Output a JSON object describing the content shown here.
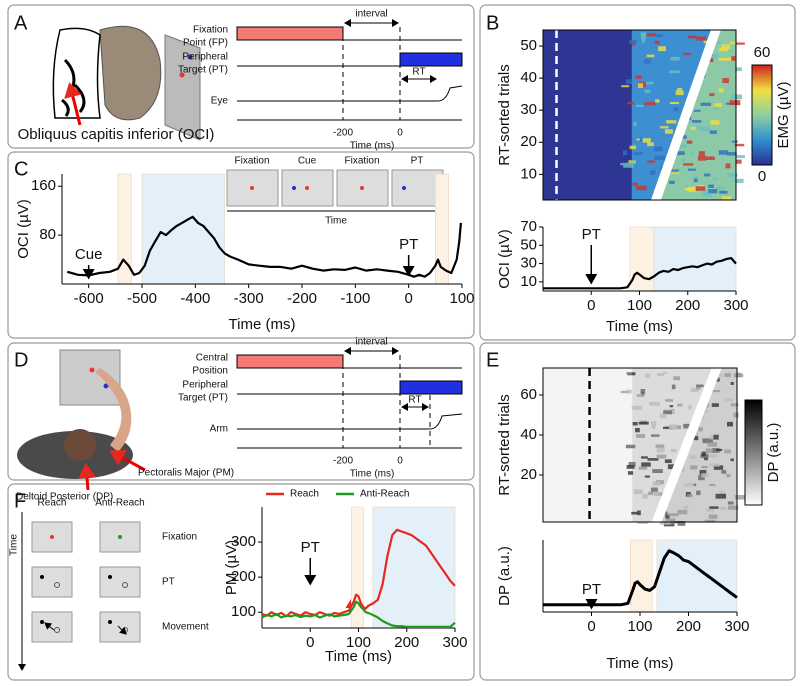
{
  "panel_labels": [
    "A",
    "B",
    "C",
    "D",
    "E",
    "F"
  ],
  "panel_a": {
    "muscle_label": "Obliquus capitis inferior (OCI)",
    "timing": {
      "rows": [
        [
          "Fixation",
          "Point (FP)"
        ],
        [
          "Peripheral",
          "Target (PT)"
        ],
        [
          "Eye"
        ]
      ],
      "interval_label": "interval",
      "rt_label": "RT",
      "xticks": [
        -200,
        0
      ],
      "xlabel": "Time (ms)"
    }
  },
  "panel_c_inset": {
    "frames": [
      "Fixation",
      "Cue",
      "Fixation",
      "PT"
    ],
    "arrow_label": "Time"
  },
  "panel_d": {
    "muscle_labels": [
      "Pectoralis Major (PM)",
      "Deltoid Posterior (DP)"
    ],
    "timing": {
      "rows": [
        [
          "Central",
          "Position"
        ],
        [
          "Peripheral",
          "Target (PT)"
        ],
        [
          "Arm"
        ]
      ],
      "interval_label": "interval",
      "rt_label": "RT",
      "xticks": [
        -200,
        0
      ],
      "xlabel": "Time (ms)"
    }
  },
  "panel_f_schematic": {
    "columns": [
      "Reach",
      "Anti-Reach"
    ],
    "rows": [
      "Fixation",
      "PT",
      "Movement"
    ],
    "axis_label": "Time"
  },
  "chart_data": [
    {
      "type": "line",
      "xlabel": "Time (ms)",
      "ylabel": "OCI (µV)",
      "xlim": [
        -650,
        100
      ],
      "ylim": [
        0,
        180
      ],
      "xticks": [
        -600,
        -500,
        -400,
        -300,
        -200,
        -100,
        0,
        100
      ],
      "yticks": [
        80,
        160
      ],
      "x": [
        -640,
        -620,
        -600,
        -580,
        -560,
        -545,
        -535,
        -525,
        -515,
        -505,
        -495,
        -485,
        -475,
        -465,
        -455,
        -445,
        -435,
        -425,
        -415,
        -405,
        -395,
        -385,
        -375,
        -365,
        -355,
        -345,
        -335,
        -320,
        -300,
        -280,
        -260,
        -240,
        -220,
        -200,
        -180,
        -160,
        -140,
        -120,
        -100,
        -80,
        -60,
        -40,
        -20,
        0,
        10,
        20,
        30,
        40,
        50,
        55,
        60,
        70,
        80,
        90,
        95,
        98
      ],
      "series": [
        {
          "color": "#000000",
          "values": [
            20,
            15,
            14,
            18,
            20,
            25,
            40,
            30,
            15,
            18,
            30,
            55,
            70,
            85,
            80,
            88,
            95,
            100,
            105,
            110,
            100,
            95,
            85,
            75,
            60,
            50,
            45,
            40,
            32,
            30,
            28,
            28,
            25,
            30,
            25,
            22,
            24,
            23,
            27,
            22,
            24,
            22,
            20,
            15,
            12,
            15,
            12,
            18,
            30,
            40,
            28,
            22,
            18,
            40,
            70,
            100
          ]
        }
      ],
      "highlights": [
        {
          "x": [
            -545,
            -520
          ],
          "color": "#fdf1e4"
        },
        {
          "x": [
            -500,
            -345
          ],
          "color": "#e3eff9"
        },
        {
          "x": [
            50,
            75
          ],
          "color": "#fdf1e4"
        }
      ],
      "annotations": [
        {
          "text": "Cue",
          "x": -600
        },
        {
          "text": "PT",
          "x": 0
        }
      ]
    },
    {
      "type": "heatmap",
      "ylabel": "RT-sorted trials",
      "ylim": [
        2,
        55
      ],
      "yticks": [
        10,
        20,
        30,
        40,
        50
      ],
      "colorbar": {
        "label": "EMG (µV)",
        "clim": [
          0,
          60
        ],
        "ticks": [
          0,
          60
        ],
        "colors": [
          "#2b2f8f",
          "#2f8fd0",
          "#8fd0a0",
          "#f0e040",
          "#d02020"
        ]
      }
    },
    {
      "type": "line",
      "xlabel": "Time (ms)",
      "ylabel": "OCI (µV)",
      "xlim": [
        -100,
        300
      ],
      "ylim": [
        0,
        70
      ],
      "xticks": [
        0,
        100,
        200,
        300
      ],
      "yticks": [
        10,
        30,
        50,
        70
      ],
      "x": [
        -100,
        -80,
        -60,
        -40,
        -20,
        0,
        20,
        40,
        60,
        75,
        85,
        90,
        95,
        100,
        110,
        120,
        130,
        140,
        150,
        160,
        170,
        180,
        190,
        200,
        210,
        220,
        230,
        240,
        250,
        260,
        270,
        280,
        290,
        300
      ],
      "series": [
        {
          "color": "#000000",
          "values": [
            3,
            3,
            3,
            3,
            3,
            3,
            3,
            3,
            3,
            4,
            12,
            18,
            20,
            18,
            14,
            13,
            16,
            20,
            22,
            21,
            24,
            23,
            25,
            26,
            27,
            26,
            28,
            30,
            29,
            32,
            33,
            35,
            36,
            30
          ]
        }
      ],
      "highlights": [
        {
          "x": [
            80,
            130
          ],
          "color": "#fdf1e4"
        },
        {
          "x": [
            130,
            300
          ],
          "color": "#e3eff9"
        }
      ],
      "annotations": [
        {
          "text": "PT",
          "x": 0
        }
      ]
    },
    {
      "type": "heatmap",
      "ylabel": "RT-sorted trials",
      "ylim": [
        -3.5,
        73.5
      ],
      "yticks": [
        20,
        40,
        60
      ],
      "colorbar": {
        "label": "DP (a.u.)",
        "colors": [
          "#ffffff",
          "#000000"
        ]
      }
    },
    {
      "type": "line",
      "xlabel": "Time (ms)",
      "ylabel": "DP (a.u.)",
      "xlim": [
        -100,
        300
      ],
      "ylim": [
        0,
        1
      ],
      "xticks": [
        0,
        100,
        200,
        300
      ],
      "x": [
        -100,
        -80,
        -60,
        -40,
        -20,
        0,
        20,
        40,
        60,
        75,
        85,
        90,
        95,
        100,
        110,
        120,
        130,
        140,
        150,
        160,
        170,
        180,
        190,
        200,
        210,
        220,
        230,
        240,
        250,
        260,
        270,
        280,
        290,
        300
      ],
      "series": [
        {
          "color": "#000000",
          "values": [
            0.1,
            0.1,
            0.1,
            0.1,
            0.1,
            0.1,
            0.1,
            0.1,
            0.1,
            0.12,
            0.3,
            0.4,
            0.42,
            0.38,
            0.32,
            0.3,
            0.35,
            0.55,
            0.75,
            0.85,
            0.82,
            0.78,
            0.72,
            0.7,
            0.65,
            0.6,
            0.55,
            0.5,
            0.45,
            0.4,
            0.35,
            0.3,
            0.25,
            0.2
          ]
        }
      ],
      "highlights": [
        {
          "x": [
            80,
            125
          ],
          "color": "#fdf1e4"
        },
        {
          "x": [
            135,
            300
          ],
          "color": "#e3eff9"
        }
      ],
      "annotations": [
        {
          "text": "PT",
          "x": 0
        }
      ]
    },
    {
      "type": "line",
      "ylabel": "PM (µV)",
      "xlabel": "Time (ms)",
      "xlim": [
        -100,
        300
      ],
      "ylim": [
        55,
        400
      ],
      "xticks": [
        0,
        100,
        200,
        300
      ],
      "yticks": [
        100,
        200,
        300
      ],
      "x": [
        -100,
        -90,
        -80,
        -70,
        -60,
        -50,
        -40,
        -30,
        -20,
        -10,
        0,
        10,
        20,
        30,
        40,
        50,
        60,
        70,
        80,
        90,
        95,
        100,
        105,
        110,
        115,
        120,
        130,
        140,
        150,
        160,
        170,
        180,
        190,
        200,
        210,
        220,
        230,
        240,
        250,
        260,
        270,
        280,
        290,
        300
      ],
      "series": [
        {
          "name": "Reach",
          "color": "#e8281e",
          "values": [
            95,
            90,
            100,
            92,
            98,
            88,
            100,
            95,
            90,
            100,
            95,
            92,
            100,
            95,
            90,
            98,
            95,
            100,
            105,
            130,
            150,
            145,
            125,
            115,
            110,
            118,
            125,
            135,
            180,
            260,
            320,
            335,
            330,
            325,
            320,
            310,
            300,
            290,
            270,
            250,
            230,
            210,
            190,
            175
          ]
        },
        {
          "name": "Anti-Reach",
          "color": "#1e9a1e",
          "values": [
            85,
            92,
            88,
            95,
            85,
            90,
            88,
            92,
            86,
            90,
            88,
            92,
            85,
            90,
            94,
            88,
            90,
            92,
            95,
            115,
            130,
            125,
            115,
            108,
            100,
            98,
            92,
            85,
            75,
            68,
            62,
            60,
            60,
            58,
            58,
            58,
            58,
            58,
            58,
            58,
            58,
            58,
            58,
            70
          ]
        }
      ],
      "highlights": [
        {
          "x": [
            85,
            110
          ],
          "color": "#fdf1e4"
        },
        {
          "x": [
            130,
            300
          ],
          "color": "#e3eff9"
        }
      ],
      "annotations": [
        {
          "text": "PT",
          "x": 0
        }
      ]
    }
  ]
}
